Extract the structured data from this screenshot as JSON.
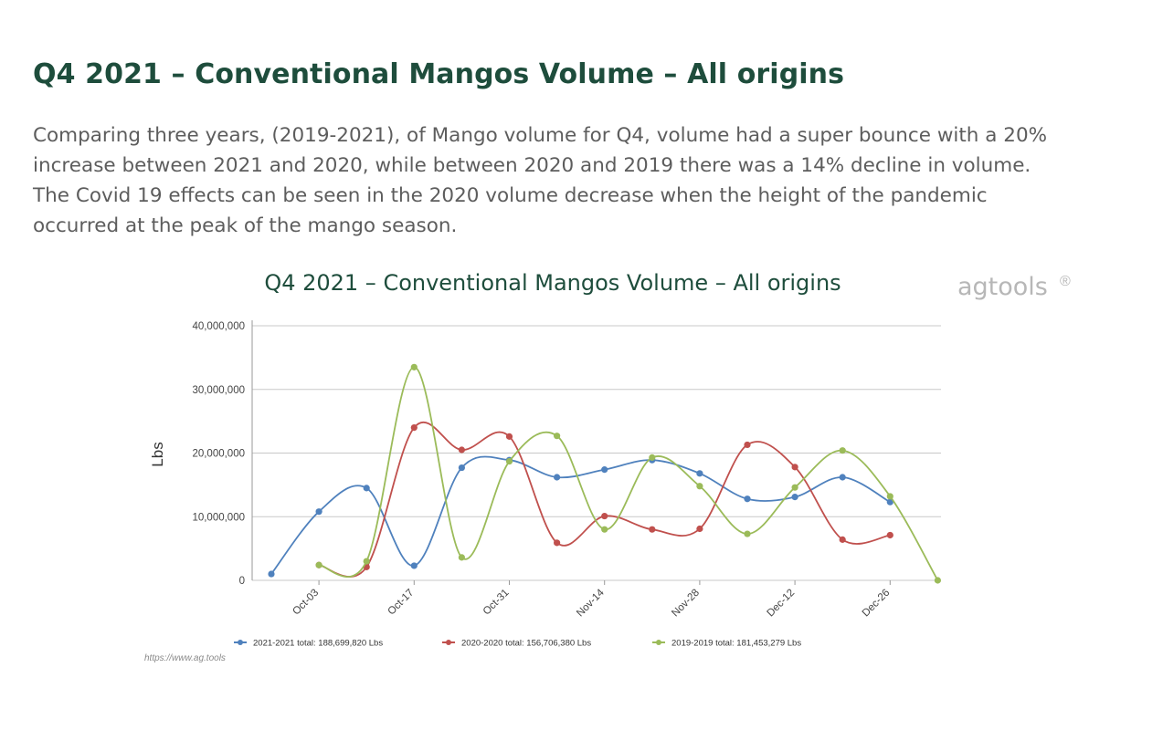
{
  "page": {
    "heading": "Q4 2021 – Conventional Mangos Volume – All origins",
    "intro": "Comparing three years, (2019-2021), of Mango volume for Q4, volume had a super bounce with a 20% increase between 2021 and 2020, while between 2020 and 2019 there was a 14% decline in volume.  The Covid 19 effects can be seen in the 2020 volume decrease when the height of the pandemic occurred at the peak of the mango season."
  },
  "brand": {
    "name": "agtools",
    "mark": "®",
    "source_url": "https://www.ag.tools"
  },
  "colors": {
    "heading": "#1e4d3c",
    "series_2021": "#4f81bd",
    "series_2020": "#c0504d",
    "series_2019": "#9bbb59",
    "grid": "#c8c8c8",
    "brand": "#b7b7b7"
  },
  "chart_data": {
    "type": "line",
    "title": "Q4 2021 – Conventional Mangos Volume – All origins",
    "ylabel": "Lbs",
    "xlabel": "",
    "ylim": [
      0,
      40000000
    ],
    "y_ticks": [
      "0",
      "10,000,000",
      "20,000,000",
      "30,000,000",
      "40,000,000"
    ],
    "x_tick_labels": [
      "Oct-03",
      "Oct-17",
      "Oct-31",
      "Nov-14",
      "Nov-28",
      "Dec-12",
      "Dec-26"
    ],
    "grid": true,
    "legend_position": "bottom",
    "smooth": true,
    "series": [
      {
        "name": "2021-2021 total:  188,699,820 Lbs",
        "color": "#4f81bd",
        "points": [
          {
            "x": "Sep-26",
            "y": 1000000
          },
          {
            "x": "Oct-03",
            "y": 10800000
          },
          {
            "x": "Oct-10",
            "y": 14500000
          },
          {
            "x": "Oct-17",
            "y": 2300000
          },
          {
            "x": "Oct-24",
            "y": 17700000
          },
          {
            "x": "Oct-31",
            "y": 18900000
          },
          {
            "x": "Nov-07",
            "y": 16200000
          },
          {
            "x": "Nov-14",
            "y": 17400000
          },
          {
            "x": "Nov-21",
            "y": 18900000
          },
          {
            "x": "Nov-28",
            "y": 16800000
          },
          {
            "x": "Dec-05",
            "y": 12800000
          },
          {
            "x": "Dec-12",
            "y": 13100000
          },
          {
            "x": "Dec-19",
            "y": 16200000
          },
          {
            "x": "Dec-26",
            "y": 12300000
          }
        ]
      },
      {
        "name": "2020-2020 total:  156,706,380 Lbs",
        "color": "#c0504d",
        "points": [
          {
            "x": "Oct-03",
            "y": 2400000
          },
          {
            "x": "Oct-10",
            "y": 2100000
          },
          {
            "x": "Oct-17",
            "y": 24000000
          },
          {
            "x": "Oct-24",
            "y": 20500000
          },
          {
            "x": "Oct-31",
            "y": 22600000
          },
          {
            "x": "Nov-07",
            "y": 5900000
          },
          {
            "x": "Nov-14",
            "y": 10100000
          },
          {
            "x": "Nov-21",
            "y": 8000000
          },
          {
            "x": "Nov-28",
            "y": 8100000
          },
          {
            "x": "Dec-05",
            "y": 21300000
          },
          {
            "x": "Dec-12",
            "y": 17800000
          },
          {
            "x": "Dec-19",
            "y": 6400000
          },
          {
            "x": "Dec-26",
            "y": 7100000
          }
        ]
      },
      {
        "name": "2019-2019 total:  181,453,279 Lbs",
        "color": "#9bbb59",
        "points": [
          {
            "x": "Oct-03",
            "y": 2400000
          },
          {
            "x": "Oct-10",
            "y": 3000000
          },
          {
            "x": "Oct-17",
            "y": 33500000
          },
          {
            "x": "Oct-24",
            "y": 3600000
          },
          {
            "x": "Oct-31",
            "y": 18700000
          },
          {
            "x": "Nov-07",
            "y": 22700000
          },
          {
            "x": "Nov-14",
            "y": 8000000
          },
          {
            "x": "Nov-21",
            "y": 19300000
          },
          {
            "x": "Nov-28",
            "y": 14800000
          },
          {
            "x": "Dec-05",
            "y": 7300000
          },
          {
            "x": "Dec-12",
            "y": 14600000
          },
          {
            "x": "Dec-19",
            "y": 20400000
          },
          {
            "x": "Dec-26",
            "y": 13200000
          },
          {
            "x": "Jan-02",
            "y": 0
          }
        ]
      }
    ]
  }
}
